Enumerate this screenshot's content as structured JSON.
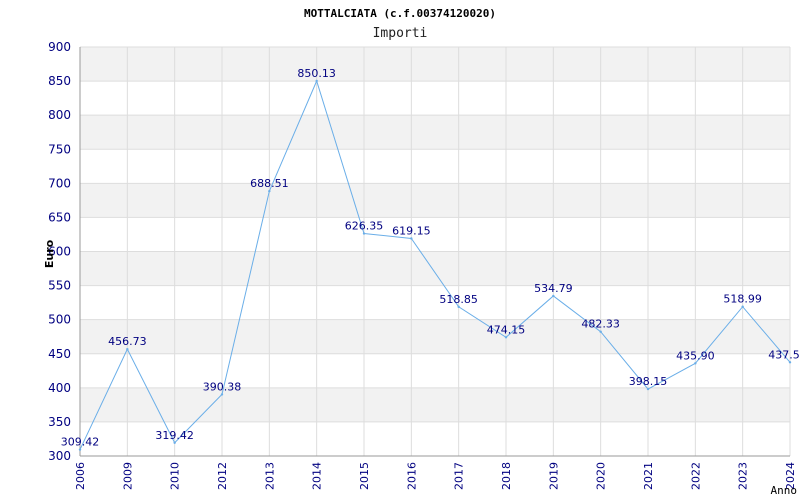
{
  "chart_data": {
    "type": "line",
    "title": "MOTTALCIATA (c.f.00374120020)",
    "subtitle": "Importi",
    "xlabel": "Anno",
    "ylabel": "Euro",
    "categories": [
      "2006",
      "2009",
      "2010",
      "2012",
      "2013",
      "2014",
      "2015",
      "2016",
      "2017",
      "2018",
      "2019",
      "2020",
      "2021",
      "2022",
      "2023",
      "2024"
    ],
    "series": [
      {
        "values": [
          309.42,
          456.73,
          319.42,
          390.38,
          688.51,
          850.13,
          626.35,
          619.15,
          518.85,
          474.15,
          534.79,
          482.33,
          398.15,
          435.9,
          518.99,
          437.5
        ],
        "labels": [
          "309.42",
          "456.73",
          "319.42",
          "390.38",
          "688.51",
          "850.13",
          "626.35",
          "619.15",
          "518.85",
          "474.15",
          "534.79",
          "482.33",
          "398.15",
          "435.90",
          "518.99",
          "437.5"
        ]
      }
    ],
    "ylim": [
      300,
      900
    ],
    "yticks": [
      "300",
      "350",
      "400",
      "450",
      "500",
      "550",
      "600",
      "650",
      "700",
      "750",
      "800",
      "850",
      "900"
    ],
    "grid": true,
    "colors": {
      "line": "#6aaee8",
      "band": "#f2f2f2",
      "grid": "#dddddd",
      "tick_text": "#000080"
    }
  }
}
